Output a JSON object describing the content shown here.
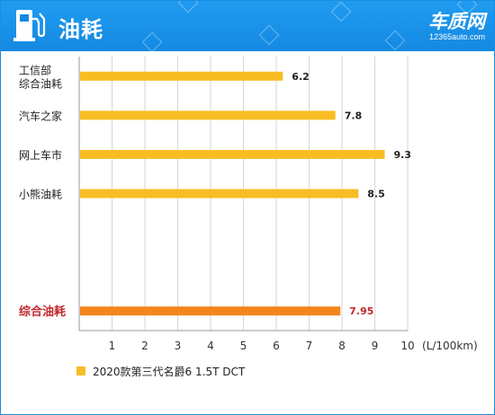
{
  "header": {
    "title": "油耗",
    "brand_name": "车质网",
    "brand_url": "12365auto.com"
  },
  "icons": [
    "fuel-pump-icon"
  ],
  "colors": {
    "header_bg": "#1589e2",
    "bar_default": "#f9bd24",
    "bar_highlight": "#f2861d",
    "highlight_text": "#c0282d"
  },
  "chart_data": {
    "type": "bar",
    "orientation": "horizontal",
    "categories": [
      "工信部\n综合油耗",
      "汽车之家",
      "网上车市",
      "小熊油耗",
      "",
      "",
      "综合油耗"
    ],
    "series": [
      {
        "name": "2020款第三代名爵6 1.5T DCT",
        "values": [
          6.2,
          7.8,
          9.3,
          8.5,
          null,
          null,
          7.95
        ],
        "value_labels": [
          "6.2",
          "7.8",
          "9.3",
          "8.5",
          "",
          "",
          "7.95"
        ]
      }
    ],
    "highlight_index": 6,
    "xlim": [
      0,
      10
    ],
    "x_ticks": [
      "1",
      "2",
      "3",
      "4",
      "5",
      "6",
      "7",
      "8",
      "9",
      "10"
    ],
    "x_unit": "(L/100km)",
    "grid": "vertical",
    "legend_position": "bottom-left"
  }
}
